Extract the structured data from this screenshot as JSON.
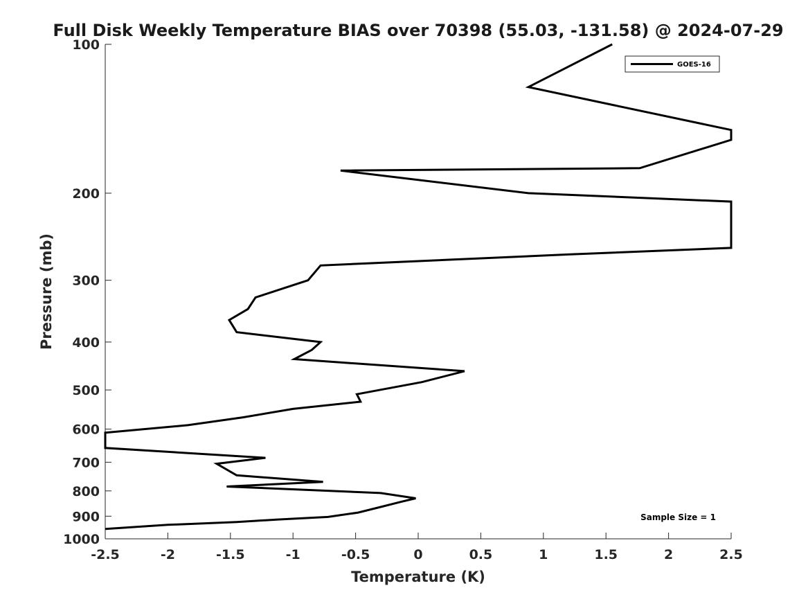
{
  "chart_data": {
    "type": "line",
    "title": "Full Disk Weekly Temperature BIAS over 70398 (55.03, -131.58) @ 2024-07-29",
    "xlabel": "Temperature (K)",
    "ylabel": "Pressure (mb)",
    "xlim": [
      -2.5,
      2.5
    ],
    "ylim": [
      1000,
      100
    ],
    "yscale": "log",
    "reversed_y": true,
    "grid": false,
    "x_ticks": [
      -2.5,
      -2,
      -1.5,
      -1,
      -0.5,
      0,
      0.5,
      1,
      1.5,
      2,
      2.5
    ],
    "x_tick_labels": [
      "-2.5",
      "-2",
      "-1.5",
      "-1",
      "-0.5",
      "0",
      "0.5",
      "1",
      "1.5",
      "2",
      "2.5"
    ],
    "y_ticks": [
      100,
      200,
      300,
      400,
      500,
      600,
      700,
      800,
      900,
      1000
    ],
    "y_tick_labels": [
      "100",
      "200",
      "300",
      "400",
      "500",
      "600",
      "700",
      "800",
      "900",
      "1000"
    ],
    "legend_position": "top-right",
    "series": [
      {
        "name": "GOES-16",
        "color": "#000000",
        "points": [
          [
            1.55,
            100
          ],
          [
            0.88,
            122
          ],
          [
            2.5,
            149
          ],
          [
            2.5,
            156
          ],
          [
            1.77,
            178
          ],
          [
            -0.62,
            180
          ],
          [
            0.88,
            200
          ],
          [
            2.5,
            208
          ],
          [
            2.5,
            258
          ],
          [
            1.2,
            266
          ],
          [
            -0.78,
            280
          ],
          [
            -0.88,
            300
          ],
          [
            -1.3,
            325
          ],
          [
            -1.36,
            343
          ],
          [
            -1.51,
            361
          ],
          [
            -1.45,
            382
          ],
          [
            -0.78,
            400
          ],
          [
            -0.85,
            415
          ],
          [
            -0.99,
            433
          ],
          [
            0.37,
            458
          ],
          [
            0.03,
            482
          ],
          [
            -0.49,
            510
          ],
          [
            -0.46,
            528
          ],
          [
            -1.0,
            546
          ],
          [
            -1.4,
            568
          ],
          [
            -1.84,
            589
          ],
          [
            -2.5,
            610
          ],
          [
            -2.5,
            655
          ],
          [
            -1.22,
            686
          ],
          [
            -1.61,
            705
          ],
          [
            -1.45,
            744
          ],
          [
            -0.76,
            767
          ],
          [
            -1.53,
            784
          ],
          [
            -0.3,
            808
          ],
          [
            -0.02,
            828
          ],
          [
            -0.14,
            842
          ],
          [
            -0.3,
            862
          ],
          [
            -0.48,
            885
          ],
          [
            -0.72,
            903
          ],
          [
            -1.12,
            914
          ],
          [
            -1.45,
            925
          ],
          [
            -2.0,
            937
          ],
          [
            -2.5,
            955
          ]
        ]
      }
    ],
    "annotations": [
      "Sample Size = 1"
    ]
  }
}
